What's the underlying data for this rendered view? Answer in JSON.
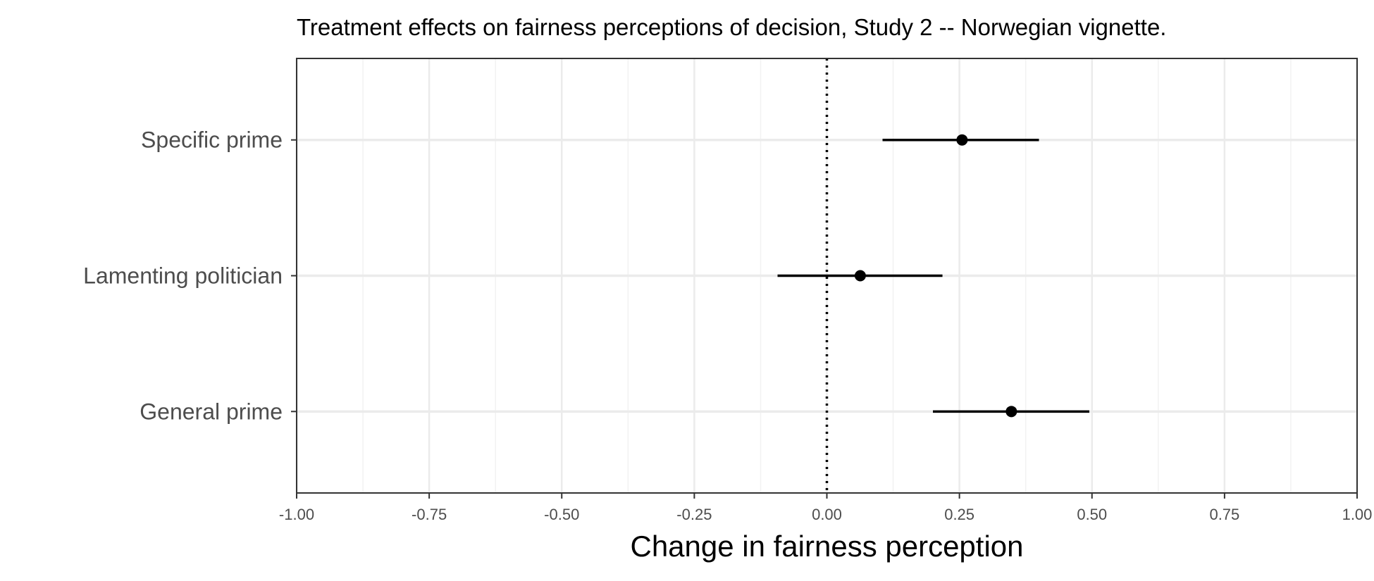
{
  "chart_data": {
    "type": "scatter",
    "title": "Treatment effects on fairness perceptions of decision, Study 2 -- Norwegian vignette.",
    "xlabel": "Change in fairness perception",
    "ylabel": "",
    "xlim": [
      -1.0,
      1.0
    ],
    "x_ticks": [
      -1.0,
      -0.75,
      -0.5,
      -0.25,
      0.0,
      0.25,
      0.5,
      0.75,
      1.0
    ],
    "x_tick_labels": [
      "-1.00",
      "-0.75",
      "-0.50",
      "-0.25",
      "0.00",
      "0.25",
      "0.50",
      "0.75",
      "1.00"
    ],
    "categories": [
      "Specific prime",
      "Lamenting politician",
      "General prime"
    ],
    "points": [
      {
        "label": "Specific prime",
        "estimate": 0.255,
        "ci_low": 0.105,
        "ci_high": 0.4
      },
      {
        "label": "Lamenting politician",
        "estimate": 0.063,
        "ci_low": -0.093,
        "ci_high": 0.218
      },
      {
        "label": "General prime",
        "estimate": 0.348,
        "ci_low": 0.2,
        "ci_high": 0.495
      }
    ],
    "reference_line": {
      "x": 0.0,
      "style": "dotted"
    },
    "grid": true,
    "legend": "none",
    "colors": {
      "point": "#000000",
      "grid_major": "#ebebeb",
      "grid_minor": "#f2f2f2",
      "panel_border": "#333333",
      "tick_text": "#4d4d4d"
    }
  }
}
